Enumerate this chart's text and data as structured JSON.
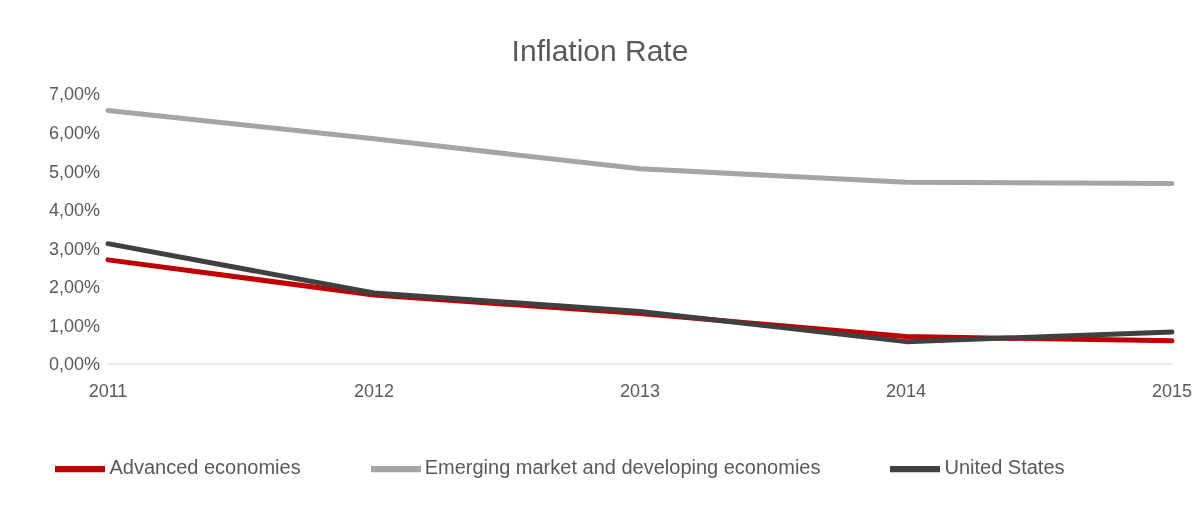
{
  "chart_data": {
    "type": "line",
    "title": "Inflation Rate",
    "categories": [
      "2011",
      "2012",
      "2013",
      "2014",
      "2015"
    ],
    "series": [
      {
        "name": "Advanced economies",
        "color": "#c00000",
        "values": [
          2.7,
          1.79,
          1.31,
          0.71,
          0.6
        ]
      },
      {
        "name": "Emerging market and developing economies",
        "color": "#a5a5a5",
        "values": [
          6.57,
          5.84,
          5.06,
          4.71,
          4.68
        ]
      },
      {
        "name": "United States",
        "color": "#404040",
        "values": [
          3.12,
          1.84,
          1.36,
          0.58,
          0.83
        ]
      }
    ],
    "ylim": [
      0,
      7
    ],
    "yticks": [
      {
        "value": 0,
        "label": "0,00%"
      },
      {
        "value": 1,
        "label": "1,00%"
      },
      {
        "value": 2,
        "label": "2,00%"
      },
      {
        "value": 3,
        "label": "3,00%"
      },
      {
        "value": 4,
        "label": "4,00%"
      },
      {
        "value": 5,
        "label": "5,00%"
      },
      {
        "value": 6,
        "label": "6,00%"
      },
      {
        "value": 7,
        "label": "7,00%"
      }
    ],
    "grid": false,
    "legend": "bottom",
    "marker": "none",
    "line_style": "solid"
  }
}
